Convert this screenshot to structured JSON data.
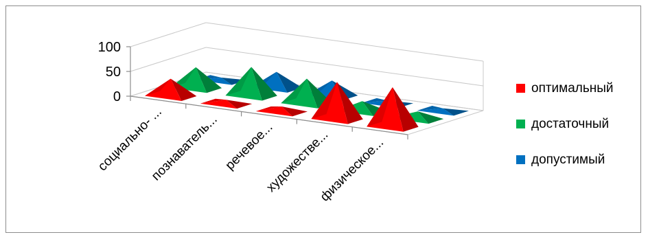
{
  "chart_data": {
    "type": "bar",
    "style": "3d-pyramid",
    "categories": [
      "социально- ...",
      "познаватель...",
      "речевое...",
      "художестве...",
      "физическое..."
    ],
    "series": [
      {
        "name": "оптимальный",
        "color": "#ff0000",
        "values": [
          35,
          8,
          10,
          75,
          80
        ]
      },
      {
        "name": "достаточный",
        "color": "#00b050",
        "values": [
          42,
          58,
          50,
          20,
          15
        ]
      },
      {
        "name": "допустимый",
        "color": "#0070c0",
        "values": [
          5,
          32,
          30,
          5,
          5
        ]
      }
    ],
    "yticks": [
      0,
      50,
      100
    ],
    "ylim": [
      0,
      100
    ],
    "grid": true,
    "legend_position": "right"
  }
}
